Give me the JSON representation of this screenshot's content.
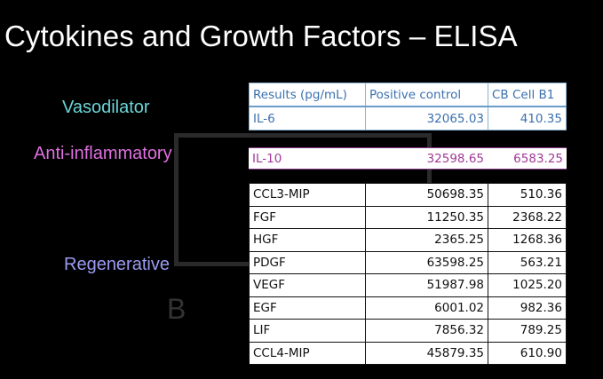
{
  "title": "Cytokines and Growth Factors – ELISA",
  "categories": {
    "vasodilator": {
      "label": "Vasodilator",
      "color": "#6ad4d8"
    },
    "anti_inflammatory": {
      "label": "Anti-inflammatory",
      "color": "#e070e0"
    },
    "regenerative": {
      "label": "Regenerative",
      "color": "#9a9cf0"
    }
  },
  "watermark": {
    "letters": "B E"
  },
  "table": {
    "headers": [
      "Results (pg/mL)",
      "Positive control",
      "CB Cell B1"
    ],
    "vasodilator_rows": [
      {
        "name": "IL-6",
        "positive": "32065.03",
        "cb": "410.35"
      }
    ],
    "anti_inflammatory_rows": [
      {
        "name": "IL-10",
        "positive": "32598.65",
        "cb": "6583.25"
      }
    ],
    "regenerative_rows": [
      {
        "name": "CCL3-MIP",
        "positive": "50698.35",
        "cb": "510.36"
      },
      {
        "name": "FGF",
        "positive": "11250.35",
        "cb": "2368.22"
      },
      {
        "name": "HGF",
        "positive": "2365.25",
        "cb": "1268.36"
      },
      {
        "name": "PDGF",
        "positive": "63598.25",
        "cb": "563.21"
      },
      {
        "name": "VEGF",
        "positive": "51987.98",
        "cb": "1025.20"
      },
      {
        "name": "EGF",
        "positive": "6001.02",
        "cb": "982.36"
      },
      {
        "name": "LIF",
        "positive": "7856.32",
        "cb": "789.25"
      },
      {
        "name": "CCL4-MIP",
        "positive": "45879.35",
        "cb": "610.90"
      }
    ]
  }
}
